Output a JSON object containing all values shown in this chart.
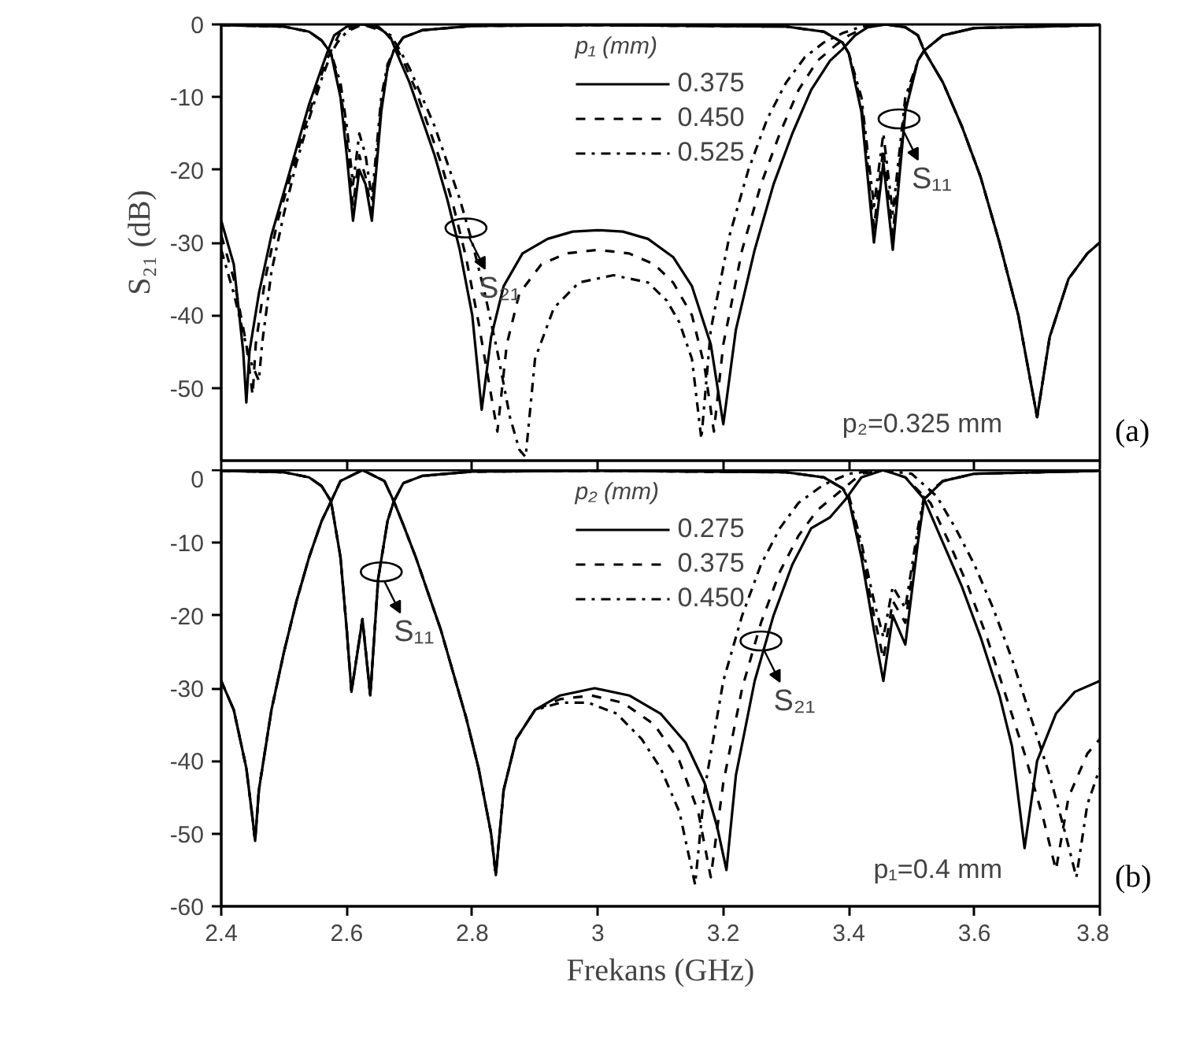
{
  "chart_data": [
    {
      "type": "line",
      "ylabel": "S₂₁ (dB)",
      "legend_title": "p₁ (mm)",
      "legend": "top",
      "grid": false,
      "marker": "none",
      "tick_labels": "y",
      "xlim": [
        2.4,
        3.8
      ],
      "xticks": [
        2.4,
        2.6,
        2.8,
        3.0,
        3.2,
        3.4,
        3.6,
        3.8
      ],
      "ylim": [
        -60,
        0
      ],
      "yticks": [
        0,
        -10,
        -20,
        -30,
        -40,
        -50
      ],
      "annotations": [
        {
          "text": "S₂₁",
          "x": 2.79,
          "y": -28
        },
        {
          "text": "S₁₁",
          "x": 3.48,
          "y": -13
        },
        "p₂=0.325 mm",
        "(a)"
      ],
      "series": [
        {
          "name": "0.375",
          "color": "#000000",
          "line_style": "solid",
          "x": [
            2.4,
            2.42,
            2.435,
            2.44,
            2.445,
            2.46,
            2.48,
            2.5,
            2.52,
            2.54,
            2.56,
            2.57,
            2.58,
            2.6,
            2.625,
            2.65,
            2.67,
            2.68,
            2.7,
            2.72,
            2.74,
            2.76,
            2.78,
            2.8,
            2.815,
            2.83,
            2.85,
            2.88,
            2.92,
            2.96,
            3.0,
            3.04,
            3.08,
            3.12,
            3.15,
            3.18,
            3.2,
            3.22,
            3.25,
            3.28,
            3.31,
            3.34,
            3.37,
            3.39,
            3.41,
            3.43,
            3.46,
            3.49,
            3.51,
            3.52,
            3.55,
            3.58,
            3.61,
            3.64,
            3.67,
            3.7,
            3.72,
            3.75,
            3.78,
            3.8
          ],
          "values": [
            -27,
            -33,
            -45,
            -52,
            -45,
            -37,
            -29,
            -23,
            -17,
            -11,
            -6,
            -3.6,
            -1.5,
            -0.3,
            0,
            -0.3,
            -1.8,
            -4,
            -8,
            -13,
            -18,
            -24,
            -31,
            -40,
            -53,
            -43,
            -36,
            -31.5,
            -29.5,
            -28.5,
            -28.3,
            -28.5,
            -29.5,
            -32,
            -36,
            -44,
            -55,
            -42,
            -31,
            -22,
            -15,
            -9,
            -5,
            -3.4,
            -1.5,
            -0.4,
            0,
            -0.4,
            -1.5,
            -3.6,
            -8,
            -14,
            -21,
            -30,
            -40,
            -54,
            -43,
            -35,
            -31.5,
            -30
          ]
        },
        {
          "name": "0.450",
          "color": "#000000",
          "line_style": "dashed",
          "x": [
            2.4,
            2.42,
            2.44,
            2.45,
            2.455,
            2.47,
            2.49,
            2.51,
            2.53,
            2.55,
            2.565,
            2.575,
            2.59,
            2.625,
            2.66,
            2.675,
            2.69,
            2.71,
            2.73,
            2.75,
            2.77,
            2.79,
            2.81,
            2.83,
            2.84,
            2.855,
            2.875,
            2.91,
            2.95,
            3.0,
            3.05,
            3.09,
            3.12,
            3.15,
            3.17,
            3.185,
            3.2,
            3.23,
            3.26,
            3.29,
            3.32,
            3.35,
            3.38,
            3.4,
            3.43,
            3.46,
            3.49,
            3.51,
            3.52,
            3.55,
            3.58,
            3.61,
            3.64,
            3.67,
            3.7,
            3.72,
            3.75,
            3.78,
            3.8
          ],
          "values": [
            -29,
            -35,
            -44,
            -51,
            -44,
            -35,
            -27,
            -21,
            -15,
            -9.5,
            -5.5,
            -3.6,
            -1,
            0,
            -1,
            -2.5,
            -5,
            -9,
            -14,
            -19,
            -25,
            -32,
            -41,
            -51,
            -56,
            -44,
            -37,
            -33,
            -31.5,
            -31,
            -31.5,
            -33,
            -35.5,
            -40,
            -47,
            -56,
            -44,
            -31,
            -22,
            -15,
            -9,
            -5,
            -2.8,
            -1.5,
            -0.3,
            0,
            -0.4,
            -1.5,
            -3.6,
            -8,
            -14,
            -21,
            -30,
            -40,
            -54,
            -43,
            -35,
            -31.5,
            -30
          ]
        },
        {
          "name": "0.525",
          "color": "#000000",
          "line_style": "dashdot",
          "x": [
            2.4,
            2.42,
            2.445,
            2.46,
            2.465,
            2.48,
            2.5,
            2.52,
            2.54,
            2.56,
            2.575,
            2.585,
            2.6,
            2.625,
            2.65,
            2.67,
            2.685,
            2.7,
            2.72,
            2.74,
            2.76,
            2.78,
            2.8,
            2.82,
            2.84,
            2.86,
            2.875,
            2.885,
            2.9,
            2.93,
            2.97,
            3.025,
            3.08,
            3.11,
            3.13,
            3.15,
            3.165,
            3.18,
            3.21,
            3.24,
            3.27,
            3.3,
            3.33,
            3.36,
            3.39,
            3.42,
            3.46,
            3.49,
            3.51,
            3.52,
            3.55,
            3.58,
            3.61,
            3.64,
            3.67,
            3.7,
            3.72,
            3.75,
            3.78,
            3.8
          ],
          "values": [
            -31,
            -37,
            -46,
            -49,
            -44,
            -34,
            -26,
            -19,
            -13,
            -7.5,
            -4,
            -2.5,
            -1,
            0,
            -0.5,
            -1.5,
            -3.6,
            -6,
            -10,
            -14,
            -19,
            -24,
            -30,
            -37,
            -45,
            -54,
            -58.5,
            -59.5,
            -46,
            -39,
            -35.5,
            -34.5,
            -35.5,
            -38,
            -41,
            -46,
            -57,
            -42,
            -29,
            -20,
            -13,
            -8,
            -4.5,
            -2.5,
            -1.2,
            -0.3,
            0,
            -0.4,
            -1.5,
            -3.6,
            -8,
            -14,
            -21,
            -30,
            -40,
            -54,
            -43,
            -35,
            -31.5,
            -30
          ]
        },
        {
          "color": "#000000",
          "line_style": "solid",
          "x": [
            2.4,
            2.5,
            2.54,
            2.56,
            2.575,
            2.59,
            2.6,
            2.61,
            2.62,
            2.63,
            2.64,
            2.655,
            2.665,
            2.675,
            2.69,
            2.72,
            2.8,
            3.0,
            3.3,
            3.36,
            3.39,
            3.4,
            3.42,
            3.44,
            3.455,
            3.47,
            3.49,
            3.51,
            3.52,
            3.55,
            3.6,
            3.8
          ],
          "values": [
            -0.1,
            -0.3,
            -1,
            -2.2,
            -4,
            -10,
            -18,
            -27,
            -20,
            -22,
            -27,
            -12,
            -6,
            -3.6,
            -1.8,
            -0.8,
            -0.2,
            -0.1,
            -0.3,
            -1,
            -2.5,
            -4,
            -12,
            -30,
            -19,
            -31,
            -12,
            -5,
            -3.6,
            -1.5,
            -0.5,
            -0.1
          ]
        },
        {
          "color": "#000000",
          "line_style": "dashed",
          "x": [
            2.4,
            2.5,
            2.54,
            2.56,
            2.575,
            2.59,
            2.6,
            2.61,
            2.62,
            2.63,
            2.64,
            2.655,
            2.665,
            2.675,
            2.69,
            2.72,
            2.8,
            3.0,
            3.3,
            3.36,
            3.39,
            3.4,
            3.42,
            3.44,
            3.455,
            3.47,
            3.49,
            3.51,
            3.52,
            3.55,
            3.6,
            3.8
          ],
          "values": [
            -0.1,
            -0.3,
            -1,
            -2.2,
            -4,
            -9,
            -16,
            -25,
            -18,
            -21,
            -26,
            -11,
            -6,
            -3.6,
            -1.8,
            -0.8,
            -0.2,
            -0.1,
            -0.3,
            -1,
            -2.5,
            -4,
            -11,
            -28,
            -17,
            -29,
            -11,
            -5,
            -3.6,
            -1.5,
            -0.5,
            -0.1
          ]
        },
        {
          "color": "#000000",
          "line_style": "dashdot",
          "x": [
            2.4,
            2.5,
            2.54,
            2.56,
            2.575,
            2.59,
            2.6,
            2.61,
            2.62,
            2.63,
            2.64,
            2.655,
            2.665,
            2.675,
            2.69,
            2.72,
            2.8,
            3.0,
            3.3,
            3.36,
            3.39,
            3.4,
            3.42,
            3.44,
            3.455,
            3.47,
            3.49,
            3.51,
            3.52,
            3.55,
            3.6,
            3.8
          ],
          "values": [
            -0.1,
            -0.3,
            -1,
            -2.2,
            -4,
            -8,
            -14,
            -22,
            -15,
            -18,
            -24,
            -10,
            -5.5,
            -3.6,
            -1.8,
            -0.8,
            -0.2,
            -0.1,
            -0.3,
            -1,
            -2.5,
            -4,
            -10,
            -25,
            -15,
            -26,
            -10,
            -5,
            -3.6,
            -1.5,
            -0.5,
            -0.1
          ]
        }
      ]
    },
    {
      "type": "line",
      "xlabel": "Frekans (GHz)",
      "legend_title": "p₂ (mm)",
      "legend": "top",
      "grid": false,
      "marker": "none",
      "xlim": [
        2.4,
        3.8
      ],
      "xticks": [
        2.4,
        2.6,
        2.8,
        3.0,
        3.2,
        3.4,
        3.6,
        3.8
      ],
      "ylim": [
        -60,
        0
      ],
      "yticks": [
        0,
        -10,
        -20,
        -30,
        -40,
        -50,
        -60
      ],
      "annotations": [
        {
          "text": "S₁₁",
          "x": 2.655,
          "y": -14
        },
        {
          "text": "S₂₁",
          "x": 3.26,
          "y": -23.5
        },
        "p₁=0.4 mm",
        "(b)"
      ],
      "series": [
        {
          "name": "0.275",
          "color": "#000000",
          "line_style": "solid",
          "x": [
            2.4,
            2.42,
            2.44,
            2.45,
            2.454,
            2.46,
            2.48,
            2.5,
            2.52,
            2.54,
            2.56,
            2.575,
            2.59,
            2.625,
            2.66,
            2.675,
            2.69,
            2.71,
            2.73,
            2.75,
            2.77,
            2.79,
            2.81,
            2.83,
            2.8375,
            2.85,
            2.87,
            2.9,
            2.94,
            2.995,
            3.05,
            3.1,
            3.14,
            3.17,
            3.19,
            3.205,
            3.22,
            3.25,
            3.28,
            3.31,
            3.34,
            3.37,
            3.395,
            3.42,
            3.455,
            3.49,
            3.52,
            3.55,
            3.58,
            3.61,
            3.64,
            3.66,
            3.68,
            3.7,
            3.73,
            3.76,
            3.8
          ],
          "values": [
            -29,
            -33,
            -41,
            -48,
            -51,
            -44,
            -33,
            -25,
            -18,
            -12,
            -7,
            -4.3,
            -1.5,
            0,
            -1.5,
            -4.3,
            -7.5,
            -12,
            -17,
            -22,
            -28,
            -34,
            -41,
            -50,
            -55.7,
            -44,
            -37,
            -33,
            -31,
            -30,
            -31,
            -33.5,
            -37.5,
            -43,
            -49,
            -55,
            -42,
            -29,
            -20,
            -13,
            -8,
            -6.5,
            -4,
            -1,
            0,
            -1,
            -4,
            -10,
            -16,
            -23,
            -31,
            -38,
            -52,
            -40,
            -33.5,
            -30.5,
            -29
          ]
        },
        {
          "name": "0.375",
          "color": "#000000",
          "line_style": "dashed",
          "x": [
            2.4,
            2.42,
            2.44,
            2.45,
            2.454,
            2.46,
            2.48,
            2.5,
            2.52,
            2.54,
            2.56,
            2.575,
            2.59,
            2.625,
            2.66,
            2.675,
            2.69,
            2.71,
            2.73,
            2.75,
            2.77,
            2.79,
            2.81,
            2.83,
            2.8375,
            2.85,
            2.87,
            2.9,
            2.94,
            2.99,
            3.04,
            3.09,
            3.13,
            3.16,
            3.18,
            3.2,
            3.23,
            3.26,
            3.29,
            3.32,
            3.35,
            3.385,
            3.42,
            3.455,
            3.49,
            3.53,
            3.56,
            3.59,
            3.62,
            3.65,
            3.68,
            3.71,
            3.73,
            3.75,
            3.78,
            3.8
          ],
          "values": [
            -29,
            -33,
            -41,
            -48,
            -51,
            -44,
            -33,
            -25,
            -18,
            -12,
            -7,
            -4.3,
            -1.5,
            0,
            -1.5,
            -4.3,
            -7.5,
            -12,
            -17,
            -22,
            -28,
            -34,
            -41,
            -50,
            -55.7,
            -44,
            -37,
            -33,
            -31.5,
            -31,
            -32,
            -35,
            -40,
            -47,
            -56,
            -43,
            -30,
            -21,
            -14,
            -9,
            -5.5,
            -3,
            -0.5,
            0,
            -1,
            -4.5,
            -10,
            -16,
            -23,
            -31,
            -39,
            -48,
            -55,
            -45,
            -39,
            -37
          ]
        },
        {
          "name": "0.450",
          "color": "#000000",
          "line_style": "dashdot",
          "x": [
            2.4,
            2.42,
            2.44,
            2.45,
            2.454,
            2.46,
            2.48,
            2.5,
            2.52,
            2.54,
            2.56,
            2.575,
            2.59,
            2.625,
            2.66,
            2.675,
            2.69,
            2.71,
            2.73,
            2.75,
            2.77,
            2.79,
            2.81,
            2.83,
            2.8375,
            2.85,
            2.87,
            2.9,
            2.94,
            2.985,
            3.03,
            3.07,
            3.1,
            3.13,
            3.155,
            3.17,
            3.2,
            3.23,
            3.26,
            3.29,
            3.32,
            3.36,
            3.4,
            3.45,
            3.5,
            3.54,
            3.57,
            3.6,
            3.63,
            3.66,
            3.69,
            3.72,
            3.745,
            3.7625,
            3.78,
            3.8
          ],
          "values": [
            -29,
            -33,
            -41,
            -48,
            -51,
            -44,
            -33,
            -25,
            -18,
            -12,
            -7,
            -4.3,
            -1.5,
            0,
            -1.5,
            -4.3,
            -7.5,
            -12,
            -17,
            -22,
            -28,
            -34,
            -41,
            -50,
            -55.7,
            -44,
            -37,
            -33,
            -32,
            -32,
            -33.5,
            -37,
            -41,
            -47,
            -57,
            -44,
            -29,
            -20,
            -13,
            -8,
            -4.5,
            -2,
            -0.5,
            0,
            -0.5,
            -3.6,
            -8,
            -13,
            -19,
            -26,
            -34,
            -42,
            -50,
            -56,
            -46,
            -41
          ]
        },
        {
          "color": "#000000",
          "line_style": "solid",
          "x": [
            2.4,
            2.5,
            2.54,
            2.56,
            2.575,
            2.59,
            2.6,
            2.6075,
            2.625,
            2.6375,
            2.65,
            2.665,
            2.675,
            2.69,
            2.72,
            2.8,
            3.0,
            3.3,
            3.36,
            3.39,
            3.4,
            3.42,
            3.44,
            3.455,
            3.47,
            3.49,
            3.51,
            3.52,
            3.55,
            3.6,
            3.8
          ],
          "values": [
            -0.1,
            -0.3,
            -1,
            -2.2,
            -4.3,
            -12,
            -22,
            -30.5,
            -20.5,
            -31,
            -15,
            -7,
            -4.3,
            -1.8,
            -0.8,
            -0.2,
            -0.1,
            -0.3,
            -1,
            -2.5,
            -4,
            -12,
            -22,
            -29,
            -20,
            -24,
            -10,
            -4,
            -1.5,
            -0.5,
            -0.1
          ]
        },
        {
          "color": "#000000",
          "line_style": "dashed",
          "x": [
            2.4,
            2.5,
            2.54,
            2.56,
            2.575,
            2.59,
            2.6,
            2.6075,
            2.625,
            2.6375,
            2.65,
            2.665,
            2.675,
            2.69,
            2.72,
            2.8,
            3.0,
            3.3,
            3.36,
            3.39,
            3.4,
            3.42,
            3.44,
            3.455,
            3.47,
            3.49,
            3.51,
            3.52,
            3.55,
            3.6,
            3.8
          ],
          "values": [
            -0.1,
            -0.3,
            -1,
            -2.2,
            -4.3,
            -12,
            -22,
            -30.5,
            -20.5,
            -31,
            -15,
            -7,
            -4.3,
            -1.8,
            -0.8,
            -0.2,
            -0.1,
            -0.3,
            -1,
            -2.5,
            -4,
            -11,
            -20,
            -26,
            -18,
            -21,
            -9,
            -4,
            -1.5,
            -0.5,
            -0.1
          ]
        },
        {
          "color": "#000000",
          "line_style": "dashdot",
          "x": [
            2.4,
            2.5,
            2.54,
            2.56,
            2.575,
            2.59,
            2.6,
            2.6075,
            2.625,
            2.6375,
            2.65,
            2.665,
            2.675,
            2.69,
            2.72,
            2.8,
            3.0,
            3.3,
            3.36,
            3.39,
            3.4,
            3.42,
            3.44,
            3.455,
            3.47,
            3.49,
            3.51,
            3.52,
            3.55,
            3.6,
            3.8
          ],
          "values": [
            -0.1,
            -0.3,
            -1,
            -2.2,
            -4.3,
            -12,
            -22,
            -30.5,
            -20.5,
            -31,
            -15,
            -7,
            -4.3,
            -1.8,
            -0.8,
            -0.2,
            -0.1,
            -0.3,
            -1,
            -2.5,
            -3.5,
            -10,
            -18,
            -23,
            -16,
            -19,
            -8,
            -3.6,
            -1.5,
            -0.5,
            -0.1
          ]
        }
      ]
    }
  ]
}
